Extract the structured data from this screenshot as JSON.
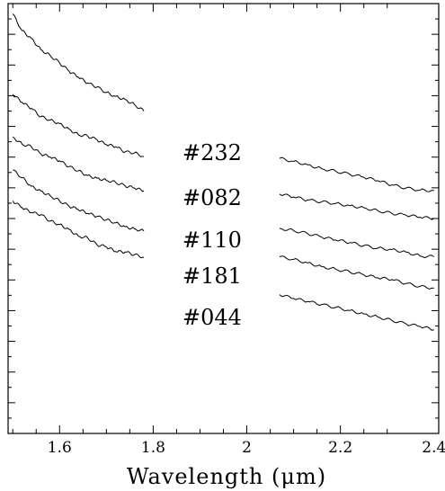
{
  "chart_data": {
    "type": "line",
    "title": "",
    "xlabel": "Wavelength (μm)",
    "ylabel": "",
    "xlim": [
      1.49,
      2.41
    ],
    "ylim": [
      0,
      1
    ],
    "x_ticks": [
      1.6,
      1.8,
      2,
      2.2,
      2.4
    ],
    "x_tick_labels": [
      "1.6",
      "1.8",
      "2",
      "2.2",
      "2.4"
    ],
    "grid": false,
    "legend": "none",
    "annotations": [
      "#232",
      "#082",
      "#110",
      "#181",
      "#044"
    ],
    "series": [
      {
        "label": "#232",
        "segments": [
          [
            [
              1.5,
              0.976
            ],
            [
              1.52,
              0.937
            ],
            [
              1.54,
              0.919
            ],
            [
              1.56,
              0.893
            ],
            [
              1.58,
              0.879
            ],
            [
              1.6,
              0.862
            ],
            [
              1.62,
              0.843
            ],
            [
              1.64,
              0.829
            ],
            [
              1.66,
              0.815
            ],
            [
              1.68,
              0.806
            ],
            [
              1.7,
              0.793
            ],
            [
              1.72,
              0.784
            ],
            [
              1.74,
              0.777
            ],
            [
              1.76,
              0.765
            ],
            [
              1.78,
              0.75
            ]
          ],
          [
            [
              2.07,
              0.64
            ],
            [
              2.1,
              0.633
            ],
            [
              2.13,
              0.625
            ],
            [
              2.16,
              0.616
            ],
            [
              2.19,
              0.61
            ],
            [
              2.22,
              0.603
            ],
            [
              2.25,
              0.596
            ],
            [
              2.28,
              0.588
            ],
            [
              2.31,
              0.578
            ],
            [
              2.34,
              0.571
            ],
            [
              2.37,
              0.566
            ],
            [
              2.4,
              0.565
            ]
          ]
        ]
      },
      {
        "label": "#082",
        "segments": [
          [
            [
              1.5,
              0.789
            ],
            [
              1.52,
              0.77
            ],
            [
              1.54,
              0.756
            ],
            [
              1.56,
              0.737
            ],
            [
              1.58,
              0.729
            ],
            [
              1.6,
              0.721
            ],
            [
              1.62,
              0.708
            ],
            [
              1.64,
              0.695
            ],
            [
              1.66,
              0.692
            ],
            [
              1.68,
              0.683
            ],
            [
              1.7,
              0.672
            ],
            [
              1.72,
              0.667
            ],
            [
              1.74,
              0.655
            ],
            [
              1.76,
              0.653
            ],
            [
              1.78,
              0.644
            ]
          ],
          [
            [
              2.07,
              0.557
            ],
            [
              2.1,
              0.55
            ],
            [
              2.13,
              0.543
            ],
            [
              2.16,
              0.539
            ],
            [
              2.19,
              0.535
            ],
            [
              2.22,
              0.53
            ],
            [
              2.25,
              0.525
            ],
            [
              2.28,
              0.518
            ],
            [
              2.31,
              0.512
            ],
            [
              2.34,
              0.508
            ],
            [
              2.37,
              0.503
            ],
            [
              2.4,
              0.5
            ]
          ]
        ]
      },
      {
        "label": "#110",
        "segments": [
          [
            [
              1.5,
              0.69
            ],
            [
              1.52,
              0.673
            ],
            [
              1.54,
              0.667
            ],
            [
              1.56,
              0.65
            ],
            [
              1.58,
              0.643
            ],
            [
              1.6,
              0.634
            ],
            [
              1.62,
              0.621
            ],
            [
              1.64,
              0.611
            ],
            [
              1.66,
              0.6
            ],
            [
              1.68,
              0.594
            ],
            [
              1.7,
              0.589
            ],
            [
              1.72,
              0.584
            ],
            [
              1.74,
              0.576
            ],
            [
              1.76,
              0.571
            ],
            [
              1.78,
              0.564
            ]
          ],
          [
            [
              2.07,
              0.477
            ],
            [
              2.1,
              0.472
            ],
            [
              2.13,
              0.465
            ],
            [
              2.16,
              0.457
            ],
            [
              2.19,
              0.45
            ],
            [
              2.22,
              0.444
            ],
            [
              2.25,
              0.437
            ],
            [
              2.28,
              0.431
            ],
            [
              2.31,
              0.428
            ],
            [
              2.34,
              0.422
            ],
            [
              2.37,
              0.413
            ],
            [
              2.4,
              0.411
            ]
          ]
        ]
      },
      {
        "label": "#181",
        "segments": [
          [
            [
              1.5,
              0.613
            ],
            [
              1.52,
              0.595
            ],
            [
              1.54,
              0.575
            ],
            [
              1.56,
              0.564
            ],
            [
              1.58,
              0.553
            ],
            [
              1.6,
              0.541
            ],
            [
              1.62,
              0.529
            ],
            [
              1.64,
              0.521
            ],
            [
              1.66,
              0.512
            ],
            [
              1.68,
              0.505
            ],
            [
              1.7,
              0.497
            ],
            [
              1.72,
              0.49
            ],
            [
              1.74,
              0.481
            ],
            [
              1.76,
              0.476
            ],
            [
              1.78,
              0.471
            ]
          ],
          [
            [
              2.07,
              0.411
            ],
            [
              2.1,
              0.405
            ],
            [
              2.13,
              0.397
            ],
            [
              2.16,
              0.388
            ],
            [
              2.19,
              0.382
            ],
            [
              2.22,
              0.376
            ],
            [
              2.25,
              0.369
            ],
            [
              2.28,
              0.362
            ],
            [
              2.31,
              0.358
            ],
            [
              2.34,
              0.349
            ],
            [
              2.37,
              0.342
            ],
            [
              2.4,
              0.338
            ]
          ]
        ]
      },
      {
        "label": "#044",
        "segments": [
          [
            [
              1.5,
              0.541
            ],
            [
              1.52,
              0.525
            ],
            [
              1.54,
              0.514
            ],
            [
              1.56,
              0.509
            ],
            [
              1.58,
              0.494
            ],
            [
              1.6,
              0.486
            ],
            [
              1.62,
              0.475
            ],
            [
              1.64,
              0.459
            ],
            [
              1.66,
              0.455
            ],
            [
              1.68,
              0.439
            ],
            [
              1.7,
              0.434
            ],
            [
              1.72,
              0.423
            ],
            [
              1.74,
              0.422
            ],
            [
              1.76,
              0.416
            ],
            [
              1.78,
              0.41
            ]
          ],
          [
            [
              2.07,
              0.323
            ],
            [
              2.1,
              0.314
            ],
            [
              2.13,
              0.307
            ],
            [
              2.16,
              0.3
            ],
            [
              2.19,
              0.293
            ],
            [
              2.22,
              0.286
            ],
            [
              2.25,
              0.278
            ],
            [
              2.28,
              0.271
            ],
            [
              2.31,
              0.263
            ],
            [
              2.34,
              0.255
            ],
            [
              2.37,
              0.249
            ],
            [
              2.4,
              0.241
            ]
          ]
        ]
      }
    ]
  }
}
